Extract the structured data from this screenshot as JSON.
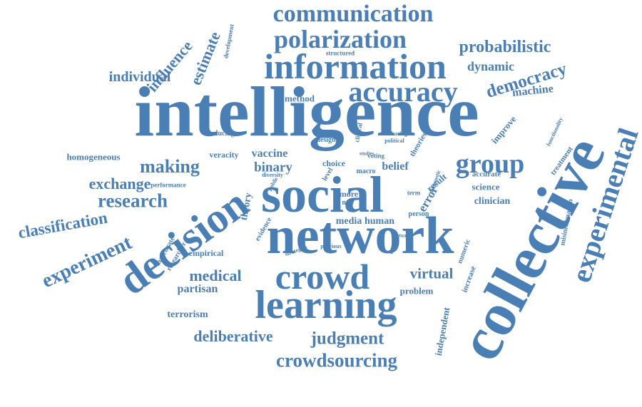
{
  "accent_color": "#4a7fb5",
  "words": [
    "intelligence",
    "collective",
    "network",
    "social",
    "decision",
    "learning",
    "crowd",
    "information",
    "experimental",
    "accuracy",
    "communication",
    "polarization",
    "group",
    "crowdsourcing",
    "judgment",
    "experiment",
    "research",
    "making",
    "democracy",
    "probabilistic",
    "deliberative",
    "classification",
    "exchange",
    "medical",
    "virtual",
    "influence",
    "estimate",
    "individual",
    "dynamic",
    "machine",
    "binary",
    "vaccine",
    "error",
    "belief",
    "homogeneous",
    "clinician",
    "science",
    "partisan",
    "terrorism",
    "problem",
    "result",
    "accurate",
    "improve",
    "treatment",
    "choice",
    "design",
    "media",
    "human",
    "more",
    "reducing",
    "veracity",
    "method",
    "independent",
    "increase",
    "empirical",
    "inaccurate",
    "researcher",
    "diversity",
    "theory",
    "evidence",
    "person",
    "misinformation",
    "functionality",
    "sharing",
    "political",
    "theories",
    "development",
    "structured",
    "macro",
    "term",
    "previous",
    "strategies",
    "numeric",
    "performance",
    "voting",
    "contrast",
    "diagnostic",
    "new",
    "factual",
    "studies",
    "clinical",
    "level",
    "public"
  ]
}
